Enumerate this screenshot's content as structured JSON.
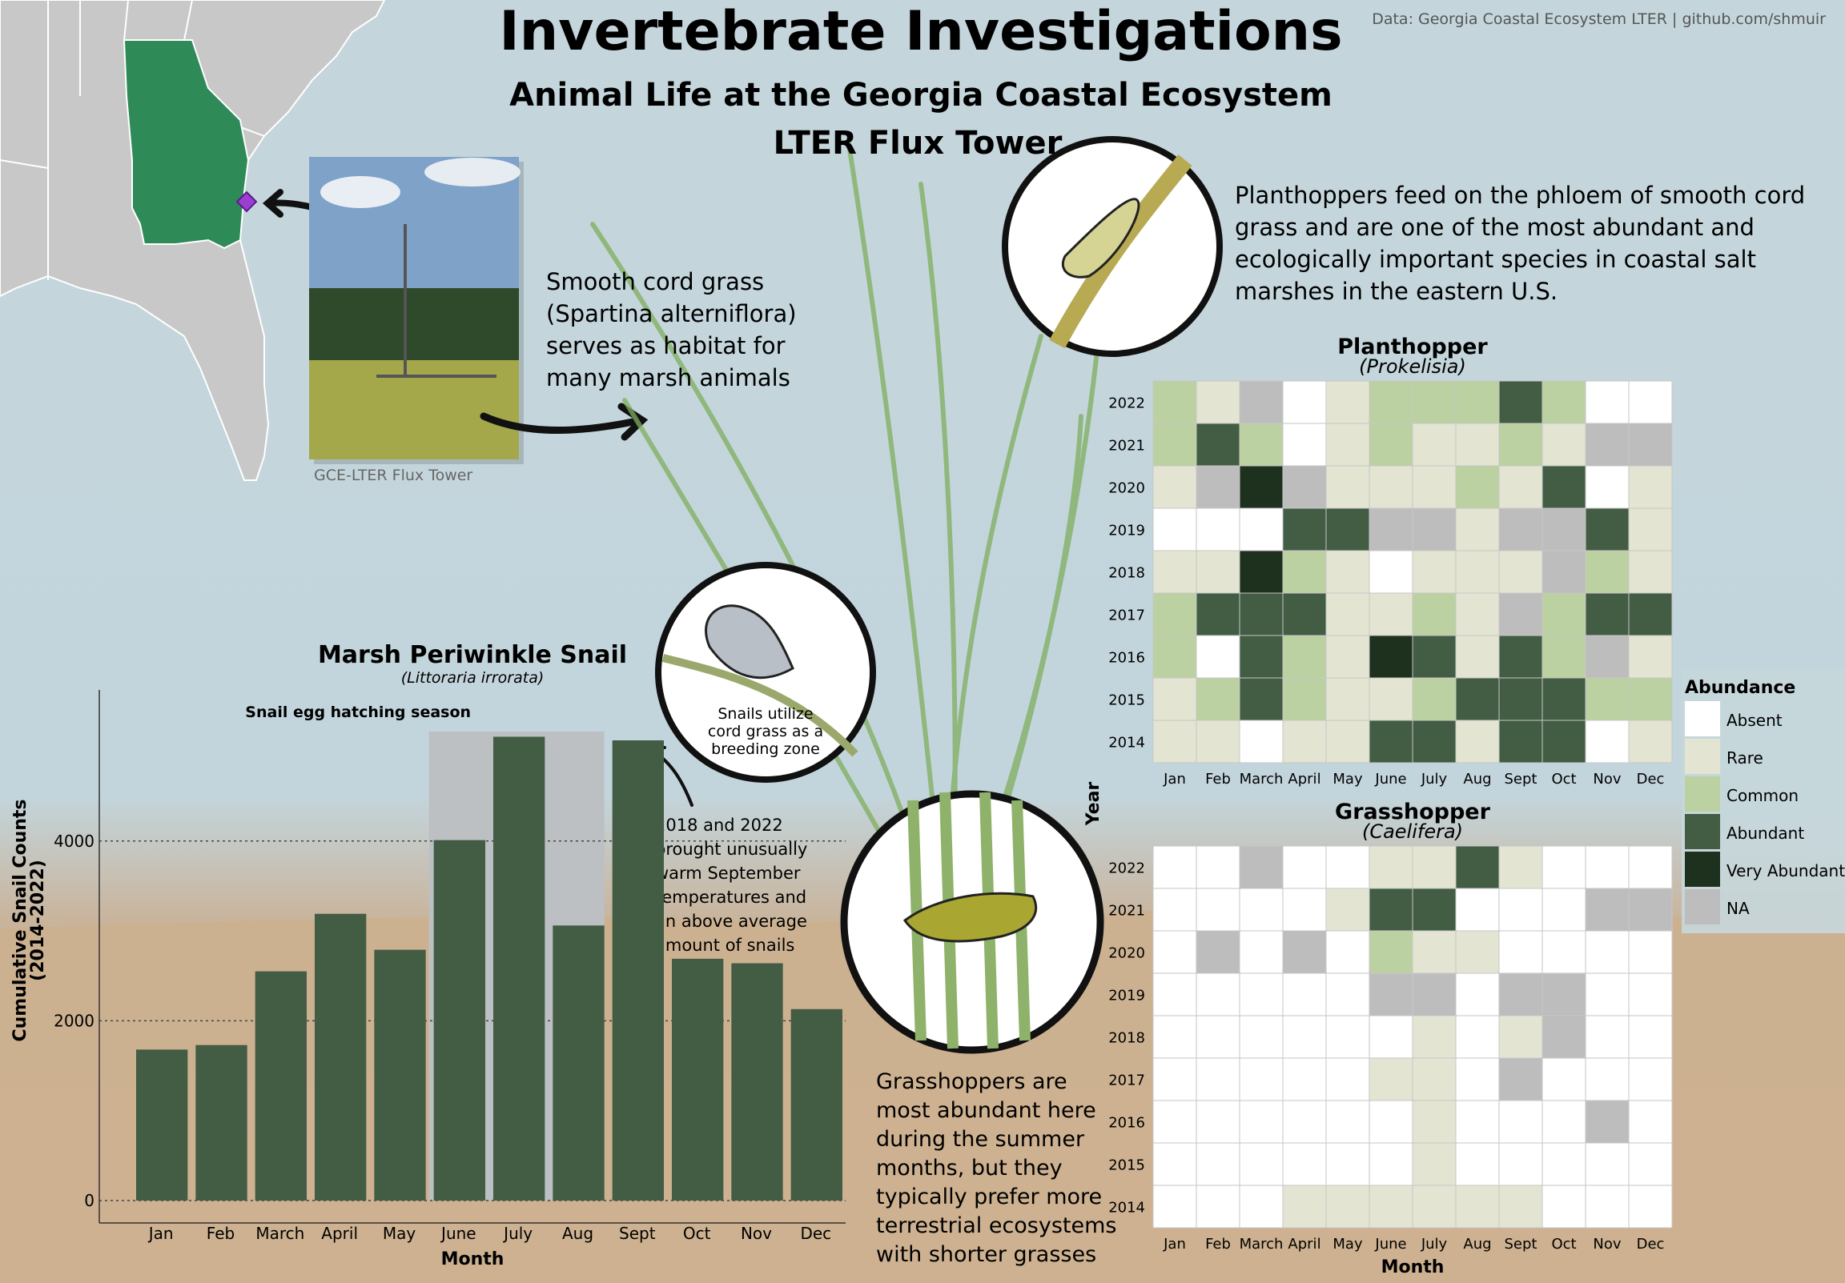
{
  "header": {
    "title": "Invertebrate Investigations",
    "subtitle_line1": "Animal Life at the Georgia Coastal Ecosystem",
    "subtitle_line2": "LTER Flux Tower",
    "credit": "Data: Georgia Coastal Ecosystem LTER | github.com/shmuir"
  },
  "photo": {
    "caption": "GCE-LTER Flux Tower"
  },
  "texts": {
    "cordgrass": [
      "Smooth cord grass",
      "(Spartina alterniflora)",
      "serves as habitat for",
      "many marsh animals"
    ],
    "planthopper": [
      "Planthoppers feed on the phloem of smooth cord",
      "grass and are one of the most abundant and",
      "ecologically important species in coastal salt",
      "marshes in the eastern U.S."
    ],
    "grasshopper": [
      "Grasshoppers are",
      "most abundant here",
      "during the summer",
      "months, but they",
      "typically prefer more",
      "terrestrial ecosystems",
      "with shorter grasses"
    ],
    "snail_circle": [
      "Snails utilize",
      "cord grass as a",
      "breeding zone"
    ],
    "snail_note": [
      "2018 and 2022",
      "brought unusually",
      "warm September",
      "temperatures and",
      "an above average",
      "amount of snails"
    ]
  },
  "colors": {
    "georgia": "#2e8b57",
    "site_marker": "#9b3fd4",
    "bar": "#435c44",
    "season_band": "#bcc0c3",
    "map_land": "#c8c8c8"
  },
  "chart_data": [
    {
      "type": "bar",
      "title": "Marsh Periwinkle Snail",
      "subtitle": "(Littoraria irrorata)",
      "xlabel": "Month",
      "ylabel": "Cumulative Snail Counts\n(2014-2022)",
      "categories": [
        "Jan",
        "Feb",
        "March",
        "April",
        "May",
        "June",
        "July",
        "Aug",
        "Sept",
        "Oct",
        "Nov",
        "Dec"
      ],
      "values": [
        1680,
        1730,
        2550,
        3190,
        2790,
        4010,
        5160,
        3060,
        5120,
        2690,
        2640,
        2130
      ],
      "ylim": [
        0,
        5200
      ],
      "yticks": [
        0,
        2000,
        4000
      ],
      "annotation": {
        "label": "Snail egg hatching season",
        "from": "June",
        "to": "Aug"
      }
    },
    {
      "type": "heatmap",
      "title": "Planthopper",
      "subtitle": "(Prokelisia)",
      "x": [
        "Jan",
        "Feb",
        "March",
        "April",
        "May",
        "June",
        "July",
        "Aug",
        "Sept",
        "Oct",
        "Nov",
        "Dec"
      ],
      "y": [
        "2022",
        "2021",
        "2020",
        "2019",
        "2018",
        "2017",
        "2016",
        "2015",
        "2014"
      ],
      "values": [
        [
          "Common",
          "Rare",
          "NA",
          "Absent",
          "Rare",
          "Common",
          "Common",
          "Common",
          "Abundant",
          "Common",
          "Absent",
          "Absent"
        ],
        [
          "Common",
          "Abundant",
          "Common",
          "Absent",
          "Rare",
          "Common",
          "Rare",
          "Rare",
          "Common",
          "Rare",
          "NA",
          "NA"
        ],
        [
          "Rare",
          "NA",
          "Very Abundant",
          "NA",
          "Rare",
          "Rare",
          "Rare",
          "Common",
          "Rare",
          "Abundant",
          "Absent",
          "Rare"
        ],
        [
          "Absent",
          "Absent",
          "Absent",
          "Abundant",
          "Abundant",
          "NA",
          "NA",
          "Rare",
          "NA",
          "NA",
          "Abundant",
          "Rare"
        ],
        [
          "Rare",
          "Rare",
          "Very Abundant",
          "Common",
          "Rare",
          "Absent",
          "Rare",
          "Rare",
          "Rare",
          "NA",
          "Common",
          "Rare"
        ],
        [
          "Common",
          "Abundant",
          "Abundant",
          "Abundant",
          "Rare",
          "Rare",
          "Common",
          "Rare",
          "NA",
          "Common",
          "Abundant",
          "Abundant"
        ],
        [
          "Common",
          "Absent",
          "Abundant",
          "Common",
          "Rare",
          "Very Abundant",
          "Abundant",
          "Rare",
          "Abundant",
          "Common",
          "NA",
          "Rare"
        ],
        [
          "Rare",
          "Common",
          "Abundant",
          "Common",
          "Rare",
          "Rare",
          "Common",
          "Abundant",
          "Abundant",
          "Abundant",
          "Common",
          "Common"
        ],
        [
          "Rare",
          "Rare",
          "Absent",
          "Rare",
          "Rare",
          "Abundant",
          "Abundant",
          "Rare",
          "Abundant",
          "Abundant",
          "Absent",
          "Rare"
        ]
      ],
      "ylabel": "Year",
      "xlabel": ""
    },
    {
      "type": "heatmap",
      "title": "Grasshopper",
      "subtitle": "(Caelifera)",
      "x": [
        "Jan",
        "Feb",
        "March",
        "April",
        "May",
        "June",
        "July",
        "Aug",
        "Sept",
        "Oct",
        "Nov",
        "Dec"
      ],
      "y": [
        "2022",
        "2021",
        "2020",
        "2019",
        "2018",
        "2017",
        "2016",
        "2015",
        "2014"
      ],
      "values": [
        [
          "Absent",
          "Absent",
          "NA",
          "Absent",
          "Absent",
          "Rare",
          "Rare",
          "Abundant",
          "Rare",
          "Absent",
          "Absent",
          "Absent"
        ],
        [
          "Absent",
          "Absent",
          "Absent",
          "Absent",
          "Rare",
          "Abundant",
          "Abundant",
          "Absent",
          "Absent",
          "Absent",
          "NA",
          "NA"
        ],
        [
          "Absent",
          "NA",
          "Absent",
          "NA",
          "Absent",
          "Common",
          "Rare",
          "Rare",
          "Absent",
          "Absent",
          "Absent",
          "Absent"
        ],
        [
          "Absent",
          "Absent",
          "Absent",
          "Absent",
          "Absent",
          "NA",
          "NA",
          "Absent",
          "NA",
          "NA",
          "Absent",
          "Absent"
        ],
        [
          "Absent",
          "Absent",
          "Absent",
          "Absent",
          "Absent",
          "Absent",
          "Rare",
          "Absent",
          "Rare",
          "NA",
          "Absent",
          "Absent"
        ],
        [
          "Absent",
          "Absent",
          "Absent",
          "Absent",
          "Absent",
          "Rare",
          "Rare",
          "Absent",
          "NA",
          "Absent",
          "Absent",
          "Absent"
        ],
        [
          "Absent",
          "Absent",
          "Absent",
          "Absent",
          "Absent",
          "Absent",
          "Rare",
          "Absent",
          "Absent",
          "Absent",
          "NA",
          "Absent"
        ],
        [
          "Absent",
          "Absent",
          "Absent",
          "Absent",
          "Absent",
          "Absent",
          "Rare",
          "Absent",
          "Absent",
          "Absent",
          "Absent",
          "Absent"
        ],
        [
          "Absent",
          "Absent",
          "Absent",
          "Rare",
          "Rare",
          "Rare",
          "Rare",
          "Rare",
          "Rare",
          "Absent",
          "Absent",
          "Absent"
        ]
      ],
      "xlabel": "Month",
      "ylabel": ""
    }
  ],
  "legend": {
    "title": "Abundance",
    "items": [
      {
        "label": "Absent",
        "color": "#ffffff"
      },
      {
        "label": "Rare",
        "color": "#e3e5d2"
      },
      {
        "label": "Common",
        "color": "#bcd1a1"
      },
      {
        "label": "Abundant",
        "color": "#435c44"
      },
      {
        "label": "Very Abundant",
        "color": "#1e301e"
      },
      {
        "label": "NA",
        "color": "#bdbdbd"
      }
    ]
  }
}
